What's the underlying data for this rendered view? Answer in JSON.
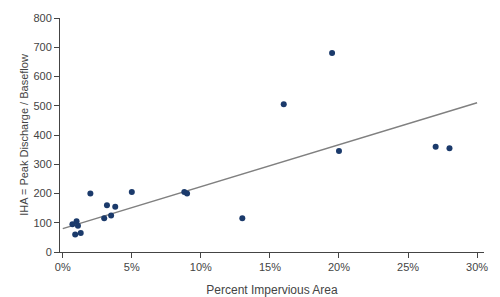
{
  "chart_data": {
    "type": "scatter",
    "xlabel": "Percent Impervious Area",
    "ylabel": "IHA = Peak Discharge / Baseflow",
    "series": [
      {
        "type": "line",
        "color": "#808080",
        "x": [
          0.0,
          0.3
        ],
        "values": [
          80,
          510
        ]
      },
      {
        "type": "scatter",
        "color": "#1b3a6b",
        "x": [
          0.007,
          0.009,
          0.01,
          0.011,
          0.013,
          0.02,
          0.03,
          0.032,
          0.035,
          0.038,
          0.05,
          0.088,
          0.09,
          0.13,
          0.16,
          0.195,
          0.2,
          0.27,
          0.28
        ],
        "values": [
          95,
          60,
          105,
          90,
          65,
          200,
          115,
          160,
          125,
          155,
          205,
          205,
          200,
          115,
          505,
          680,
          345,
          360,
          355
        ]
      }
    ],
    "xlim": [
      -0.002,
      0.305
    ],
    "ylim": [
      0,
      800
    ],
    "xticks": [
      {
        "value": 0.0,
        "label": "0%"
      },
      {
        "value": 0.05,
        "label": "5%"
      },
      {
        "value": 0.1,
        "label": "10%"
      },
      {
        "value": 0.15,
        "label": "15%"
      },
      {
        "value": 0.2,
        "label": "20%"
      },
      {
        "value": 0.25,
        "label": "25%"
      },
      {
        "value": 0.3,
        "label": "30%"
      }
    ],
    "yticks": [
      0,
      100,
      200,
      300,
      400,
      500,
      600,
      700,
      800
    ],
    "grid": false
  }
}
